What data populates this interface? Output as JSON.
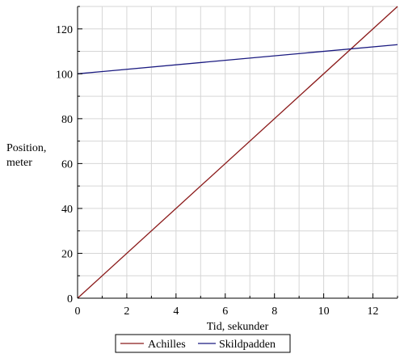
{
  "chart_data": {
    "type": "line",
    "xlabel": "Tid, sekunder",
    "ylabel_lines": [
      "Position,",
      "meter"
    ],
    "xlim": [
      0,
      13
    ],
    "ylim": [
      0,
      130
    ],
    "x_ticks": [
      0,
      2,
      4,
      6,
      8,
      10,
      12
    ],
    "y_ticks": [
      0,
      20,
      40,
      60,
      80,
      100,
      120
    ],
    "x_minor_step": 1,
    "y_minor_step": 10,
    "grid": true,
    "legend_position": "bottom",
    "series": [
      {
        "name": "Achilles",
        "color": "#8b1a1a",
        "x": [
          0,
          13
        ],
        "y": [
          0,
          130
        ]
      },
      {
        "name": "Skildpadden",
        "color": "#1a1a80",
        "x": [
          0,
          13
        ],
        "y": [
          100,
          113
        ]
      }
    ]
  }
}
